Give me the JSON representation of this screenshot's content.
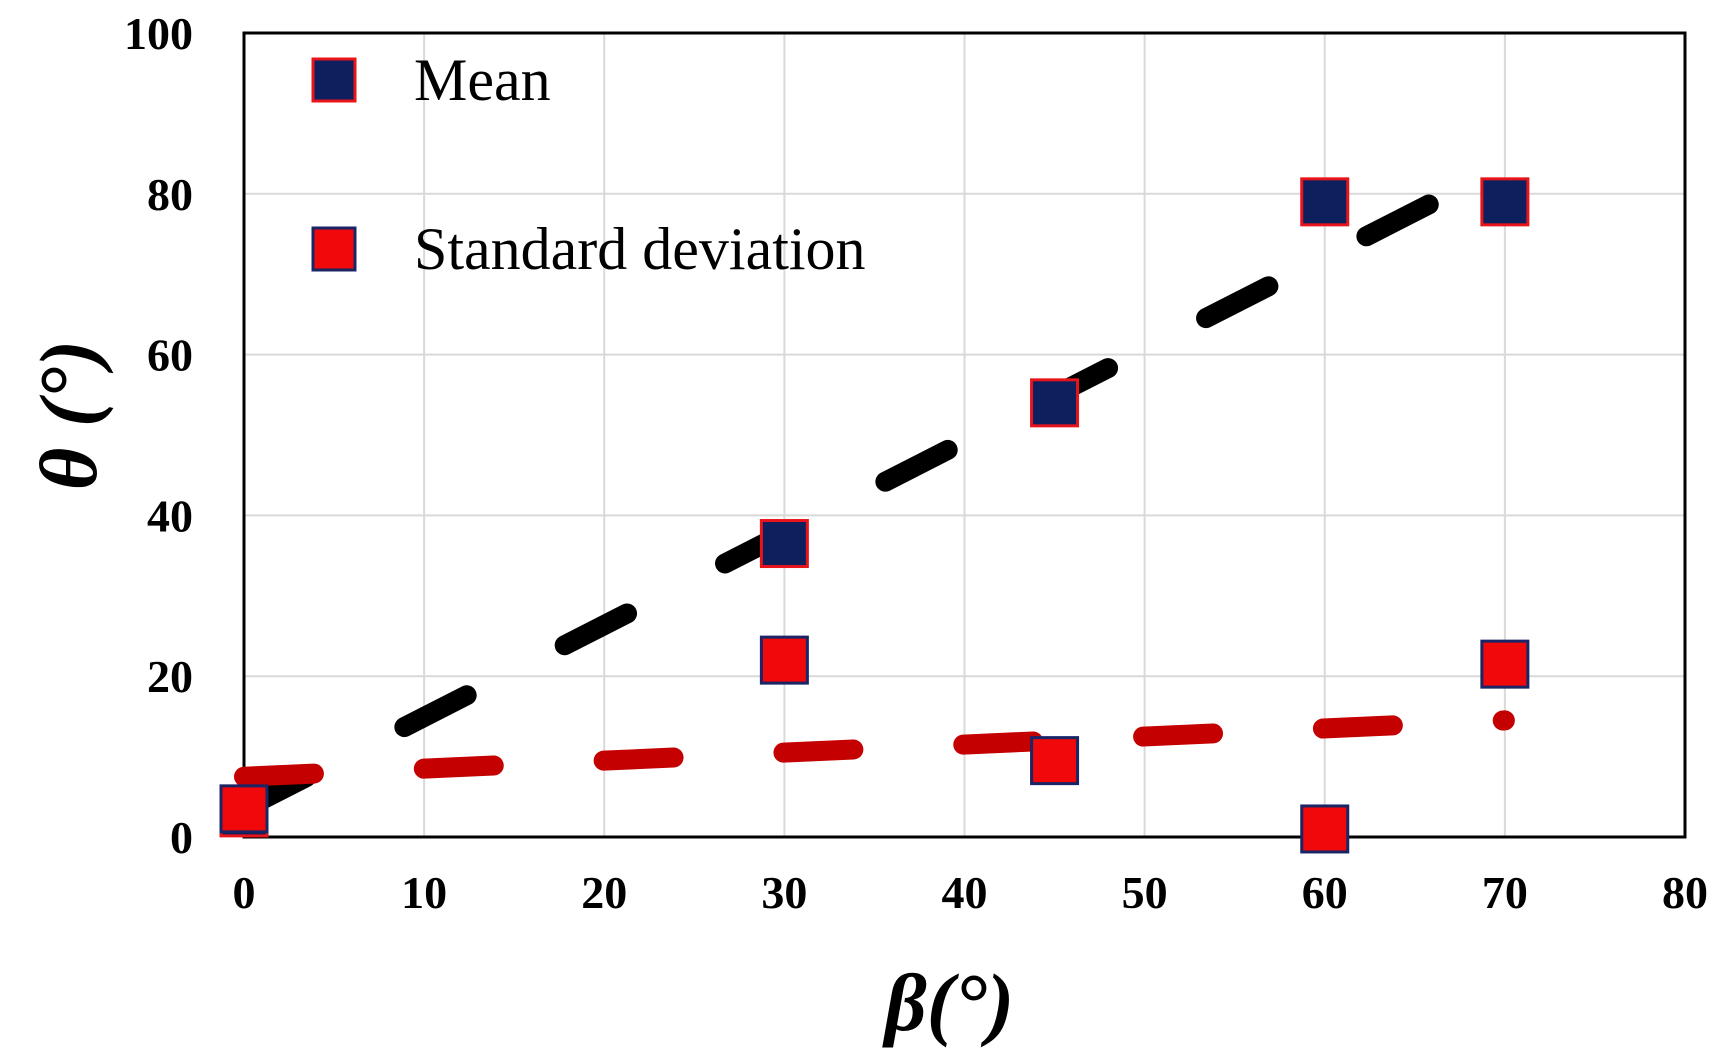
{
  "chart_data": {
    "type": "scatter",
    "title": "",
    "xlabel": "β(°)",
    "ylabel": "θ (°)",
    "xlim": [
      0,
      80
    ],
    "ylim": [
      0,
      100
    ],
    "x_ticks": [
      0,
      10,
      20,
      30,
      40,
      50,
      60,
      70,
      80
    ],
    "y_ticks": [
      0,
      20,
      40,
      60,
      80,
      100
    ],
    "grid": true,
    "legend_position": "top-left",
    "series": [
      {
        "name": "Mean",
        "marker": "square",
        "fill_color": "#0d1f5c",
        "edge_color": "#e8141b",
        "x": [
          0,
          30,
          45,
          60,
          70
        ],
        "y": [
          3,
          36.5,
          54,
          79,
          79
        ]
      },
      {
        "name": "Standard deviation",
        "marker": "square",
        "fill_color": "#f0080a",
        "edge_color": "#1a2566",
        "x": [
          0,
          30,
          45,
          60,
          70
        ],
        "y": [
          3.5,
          22,
          9.5,
          1,
          21.5
        ]
      }
    ],
    "trendlines": [
      {
        "series": "Mean",
        "style": "dashed",
        "color": "#000000",
        "x": [
          0,
          66.5
        ],
        "y": [
          3.5,
          79.5
        ]
      },
      {
        "series": "Standard deviation",
        "style": "dashed",
        "color": "#c40000",
        "x": [
          0,
          70
        ],
        "y": [
          7.5,
          14.5
        ]
      }
    ]
  }
}
